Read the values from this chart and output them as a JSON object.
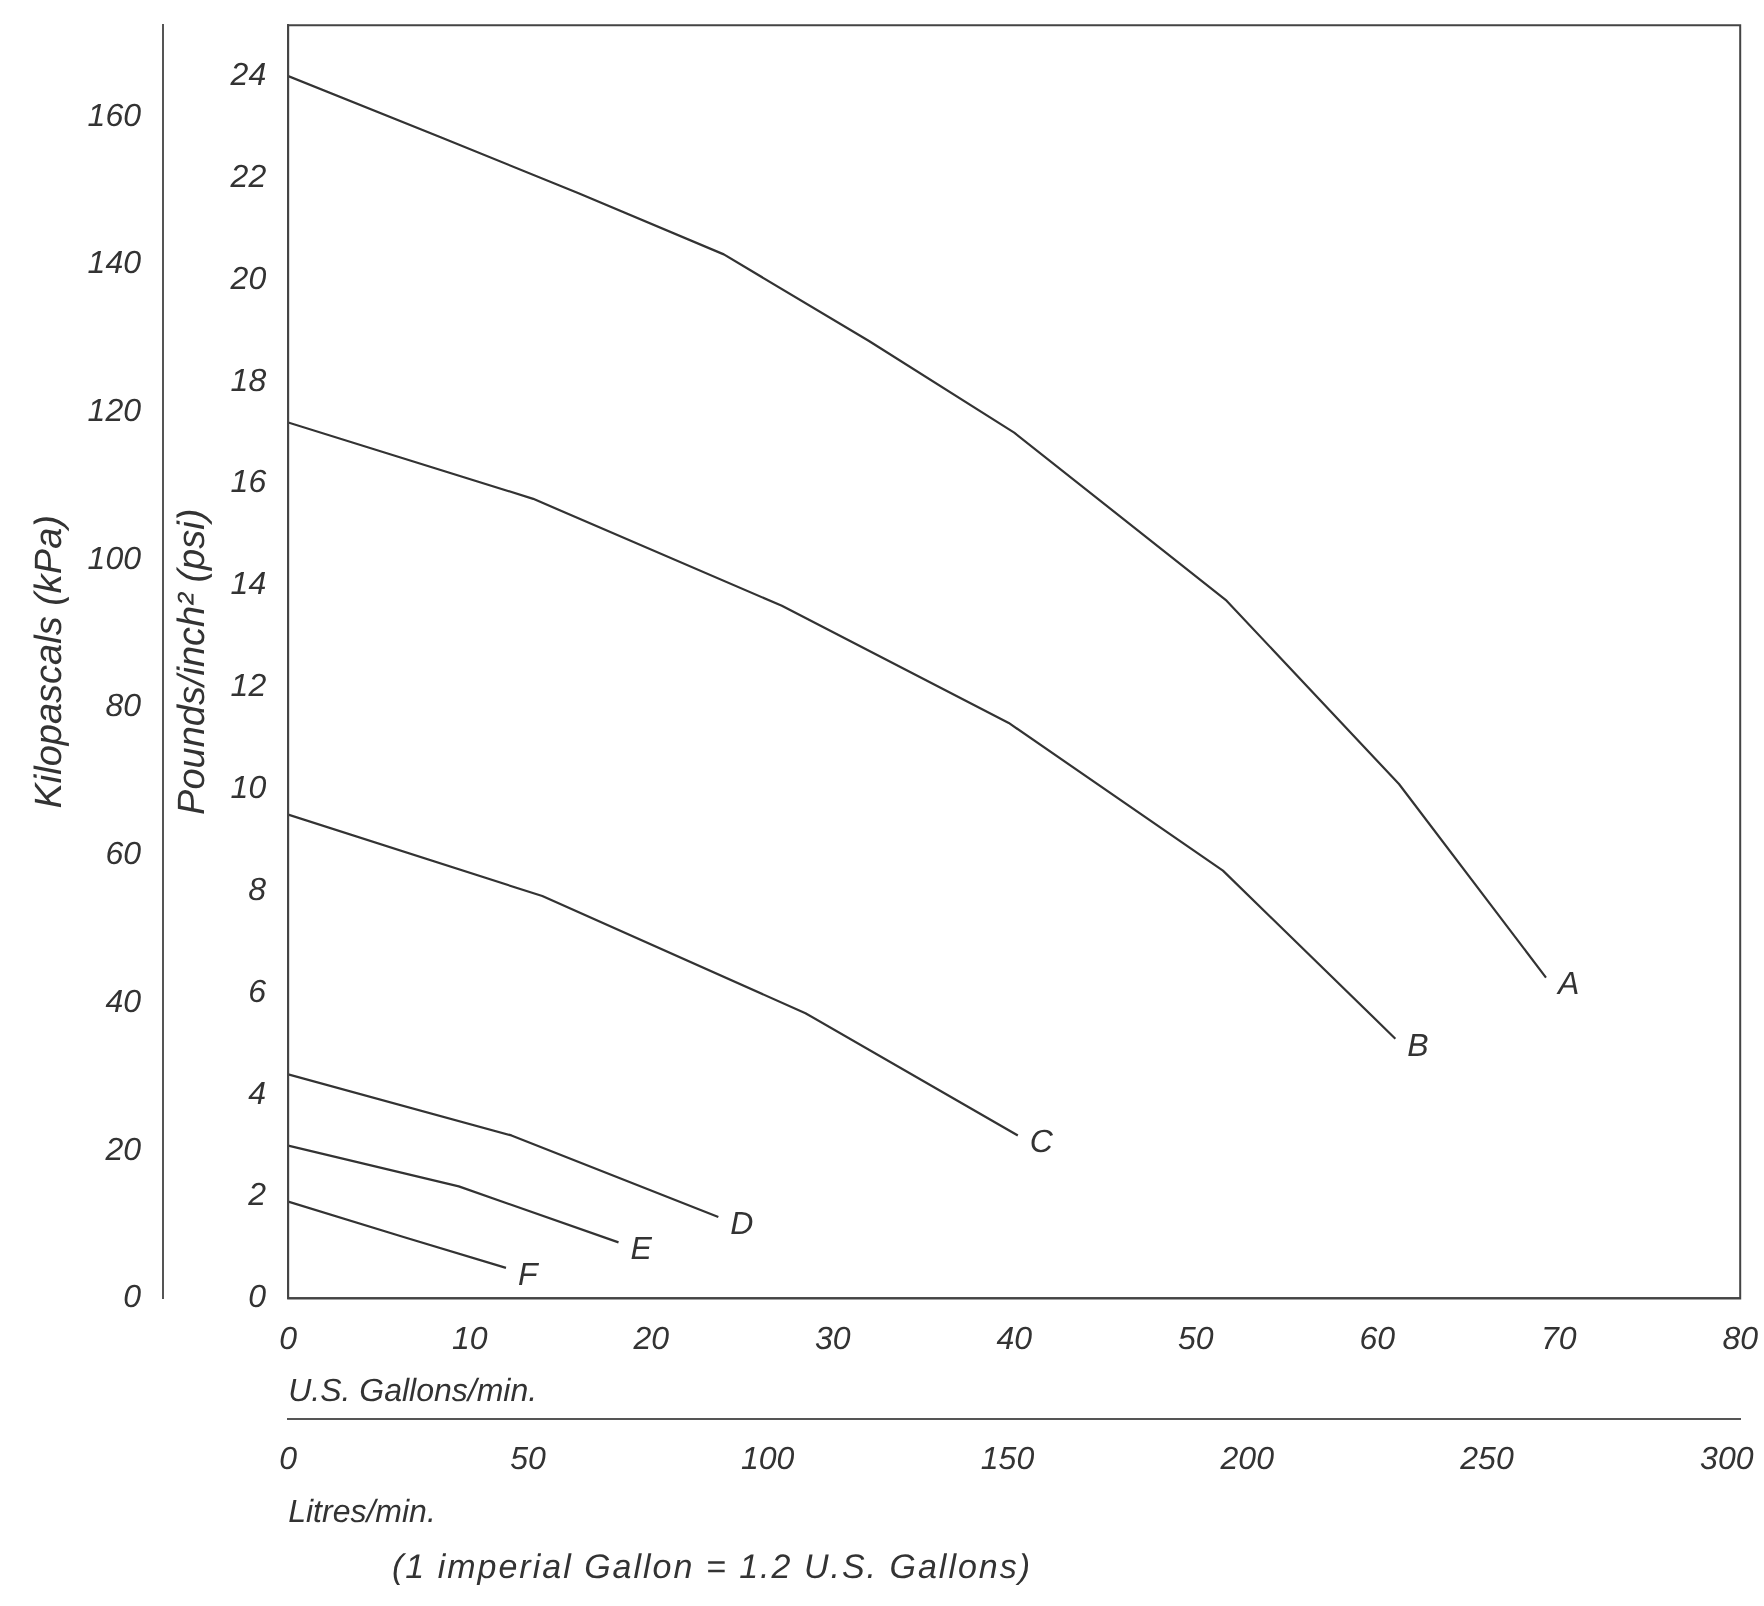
{
  "chart_data": {
    "type": "line",
    "xlabel": "U.S. Gallons/min.",
    "x2label": "Litres/min.",
    "ylabel": "Pounds/inch² (psi)",
    "y2label": "Kilopascals (kPa)",
    "annotations": [
      "(1 imperial Gallon = 1.2 U.S. Gallons)"
    ],
    "xlim": [
      0,
      80
    ],
    "xticks": [
      0,
      10,
      20,
      30,
      40,
      50,
      60,
      70,
      80
    ],
    "x2lim": [
      0,
      302.8
    ],
    "x2ticks": [
      0,
      50,
      100,
      150,
      200,
      250,
      300
    ],
    "ylim": [
      0,
      25
    ],
    "yticks": [
      0,
      2,
      4,
      6,
      8,
      10,
      12,
      14,
      16,
      18,
      20,
      22,
      24
    ],
    "y2lim": [
      0,
      172.4
    ],
    "y2ticks": [
      0,
      20,
      40,
      60,
      80,
      100,
      120,
      140,
      160
    ],
    "grid": false,
    "legend": false,
    "marker": "none",
    "line_style": "solid",
    "series": [
      {
        "name": "A",
        "color": "#333333",
        "x": [
          0,
          8.4,
          16,
          24,
          32,
          40,
          51.7,
          61.2,
          69.3
        ],
        "values": [
          24.0,
          22.8,
          21.7,
          20.5,
          18.8,
          17.0,
          13.7,
          10.1,
          6.3
        ]
      },
      {
        "name": "B",
        "color": "#333333",
        "x": [
          0,
          13.5,
          27.2,
          39.7,
          51.5,
          61
        ],
        "values": [
          17.2,
          15.7,
          13.6,
          11.3,
          8.4,
          5.1
        ]
      },
      {
        "name": "C",
        "color": "#333333",
        "x": [
          0,
          14,
          28.5,
          40.2
        ],
        "values": [
          9.5,
          7.9,
          5.6,
          3.2
        ]
      },
      {
        "name": "D",
        "color": "#333333",
        "x": [
          0,
          12.3,
          23.7
        ],
        "values": [
          4.4,
          3.2,
          1.6
        ]
      },
      {
        "name": "E",
        "color": "#333333",
        "x": [
          0,
          9.4,
          18.2
        ],
        "values": [
          3.0,
          2.2,
          1.1
        ]
      },
      {
        "name": "F",
        "color": "#333333",
        "x": [
          0,
          6.4,
          12
        ],
        "values": [
          1.9,
          1.2,
          0.6
        ]
      }
    ]
  }
}
